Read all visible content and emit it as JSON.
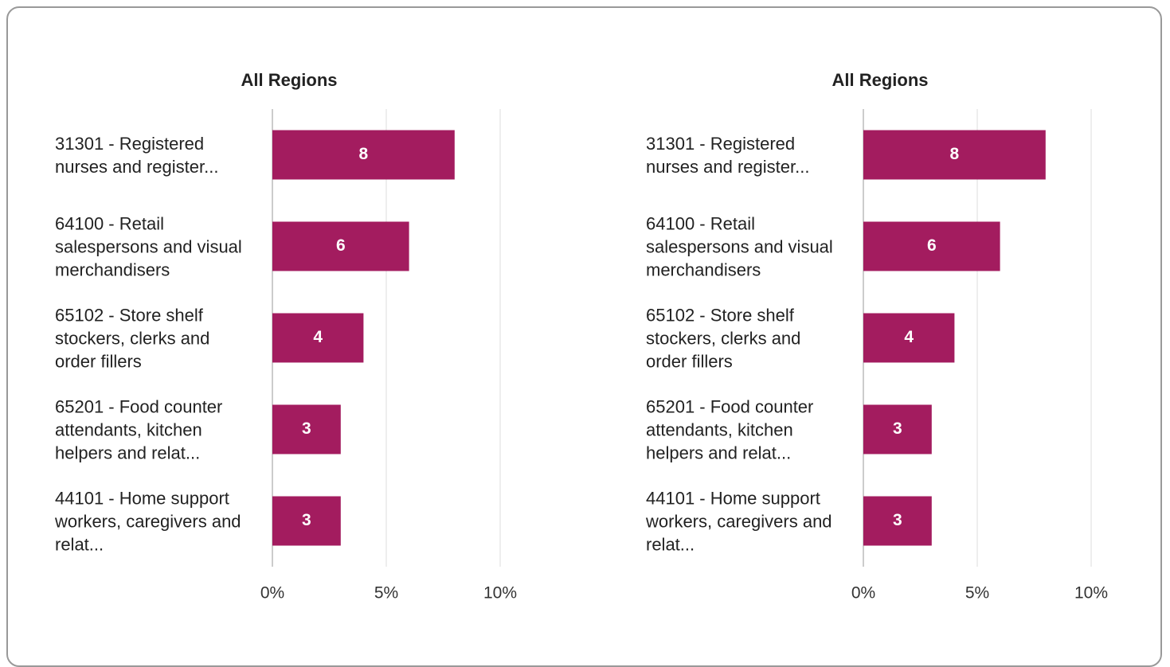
{
  "chart_data": [
    {
      "type": "bar",
      "orientation": "horizontal",
      "title": "All Regions",
      "categories": [
        "31301 - Registered nurses and register...",
        "64100 - Retail salespersons and visual merchandisers",
        "65102 - Store shelf stockers, clerks and order fillers",
        "65201 - Food counter attendants, kitchen helpers and relat...",
        "44101 - Home support workers, caregivers and relat..."
      ],
      "values": [
        8,
        6,
        4,
        3,
        3
      ],
      "color": "#a31c5f",
      "xlim": [
        0,
        10
      ],
      "xticks": [
        {
          "value": 0,
          "label": "0%"
        },
        {
          "value": 5,
          "label": "5%"
        },
        {
          "value": 10,
          "label": "10%"
        }
      ],
      "grid": true
    },
    {
      "type": "bar",
      "orientation": "horizontal",
      "title": "All Regions",
      "categories": [
        "31301 - Registered nurses and register...",
        "64100 - Retail salespersons and visual merchandisers",
        "65102 - Store shelf stockers, clerks and order fillers",
        "65201 - Food counter attendants, kitchen helpers and relat...",
        "44101 - Home support workers, caregivers and relat..."
      ],
      "values": [
        8,
        6,
        4,
        3,
        3
      ],
      "color": "#a31c5f",
      "xlim": [
        0,
        10
      ],
      "xticks": [
        {
          "value": 0,
          "label": "0%"
        },
        {
          "value": 5,
          "label": "5%"
        },
        {
          "value": 10,
          "label": "10%"
        }
      ],
      "grid": true
    }
  ]
}
